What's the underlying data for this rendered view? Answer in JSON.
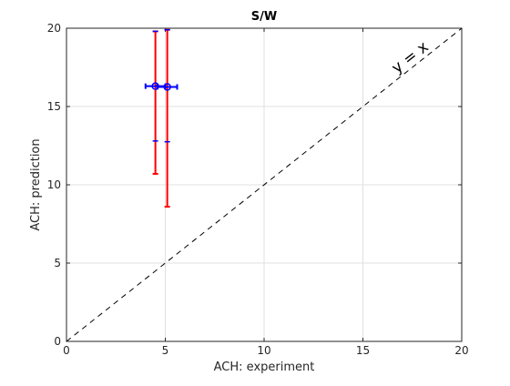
{
  "chart_data": {
    "type": "scatter",
    "title": "S/W",
    "xlabel": "ACH: experiment",
    "ylabel": "ACH: prediction",
    "xlim": [
      0,
      20
    ],
    "ylim": [
      0,
      20
    ],
    "xticks": [
      0,
      5,
      10,
      15,
      20
    ],
    "yticks": [
      0,
      5,
      10,
      15,
      20
    ],
    "grid": true,
    "legend": "none",
    "annotation": "y = x",
    "reference_line": {
      "style": "dashed",
      "color": "#000000",
      "from": [
        0,
        0
      ],
      "to": [
        20,
        20
      ]
    },
    "points": [
      {
        "x": 4.5,
        "y": 16.3,
        "xerr": [
          0.5,
          0.5
        ],
        "y_inner": [
          12.8,
          19.8
        ],
        "y_outer": [
          10.7,
          19.8
        ]
      },
      {
        "x": 5.1,
        "y": 16.25,
        "xerr": [
          0.5,
          0.5
        ],
        "y_inner": [
          12.75,
          19.9
        ],
        "y_outer": [
          8.6,
          19.9
        ]
      }
    ],
    "colors": {
      "marker": "#0000ff",
      "x_error": "#0000ff",
      "outer_error": "#ff0000",
      "inner_error": "#0000ff",
      "grid": "#e0e0e0",
      "axis": "#262626"
    }
  }
}
